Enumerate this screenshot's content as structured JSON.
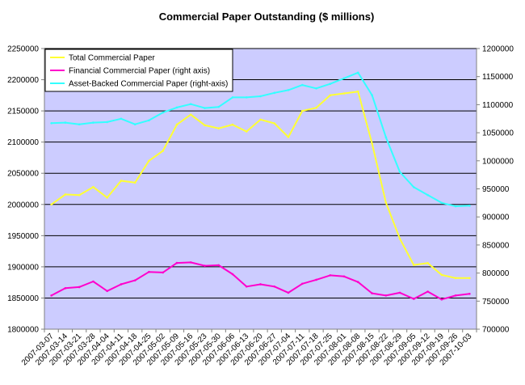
{
  "chart_data": {
    "type": "line",
    "title": "Commercial Paper Outstanding ($ millions)",
    "x_categories": [
      "2007-03-07",
      "2007-03-14",
      "2007-03-21",
      "2007-03-28",
      "2007-04-04",
      "2007-04-11",
      "2007-04-18",
      "2007-04-25",
      "2007-05-02",
      "2007-05-09",
      "2007-05-16",
      "2007-05-23",
      "2007-05-30",
      "2007-06-06",
      "2007-06-13",
      "2007-06-20",
      "2007-06-27",
      "2007-07-04",
      "2007-07-11",
      "2007-07-18",
      "2007-07-25",
      "2007-08-01",
      "2007-08-08",
      "2007-08-15",
      "2007-08-22",
      "2007-08-29",
      "2007-09-05",
      "2007-09-12",
      "2007-09-19",
      "2007-09-26",
      "2007-10-03"
    ],
    "y_left": {
      "min": 1800000,
      "max": 2250000,
      "ticks": [
        1800000,
        1850000,
        1900000,
        1950000,
        2000000,
        2050000,
        2100000,
        2150000,
        2200000,
        2250000
      ],
      "tick_labels": [
        "1800000",
        "1850000",
        "1900000",
        "1950000",
        "2000000",
        "2050000",
        "2100000",
        "2150000",
        "2200000",
        "2250000"
      ]
    },
    "y_right": {
      "min": 700000,
      "max": 1200000,
      "ticks": [
        700000,
        750000,
        800000,
        850000,
        900000,
        950000,
        1000000,
        1050000,
        1100000,
        1150000,
        1200000
      ],
      "tick_labels": [
        "700000",
        "750000",
        "800000",
        "850000",
        "900000",
        "950000",
        "1000000",
        "1050000",
        "1100000",
        "1150000",
        "1200000"
      ]
    },
    "grid": true,
    "plot_background": "#ccccff",
    "legend_position": "top-left",
    "series": [
      {
        "name": "Total Commercial Paper",
        "axis": "left",
        "color": "#ffff33",
        "values": [
          2000000,
          2016000,
          2015000,
          2028000,
          2011000,
          2038000,
          2035000,
          2070000,
          2086000,
          2128000,
          2144000,
          2127000,
          2122000,
          2128000,
          2117000,
          2136000,
          2130000,
          2108000,
          2150000,
          2155000,
          2175000,
          2178000,
          2181000,
          2098000,
          2003000,
          1945000,
          1903000,
          1906000,
          1887000,
          1882000,
          1882000
        ]
      },
      {
        "name": "Financial Commercial Paper (right axis)",
        "axis": "right",
        "color": "#ff00cc",
        "values": [
          760000,
          773000,
          775000,
          785000,
          768000,
          780000,
          787000,
          802000,
          801000,
          818000,
          819000,
          813000,
          814000,
          798000,
          776000,
          780000,
          776000,
          765000,
          781000,
          788000,
          796000,
          794000,
          784000,
          764000,
          760000,
          765000,
          754000,
          767000,
          753000,
          760000,
          763000
        ]
      },
      {
        "name": "Asset-Backed Commercial Paper (right-axis)",
        "axis": "right",
        "color": "#33ffff",
        "values": [
          1067000,
          1068000,
          1065000,
          1068000,
          1069000,
          1075000,
          1065000,
          1072000,
          1086000,
          1095000,
          1101000,
          1094000,
          1096000,
          1113000,
          1113000,
          1115000,
          1121000,
          1126000,
          1135000,
          1129000,
          1137000,
          1147000,
          1157000,
          1117000,
          1042000,
          980000,
          953000,
          939000,
          925000,
          919000,
          920000
        ]
      }
    ]
  }
}
